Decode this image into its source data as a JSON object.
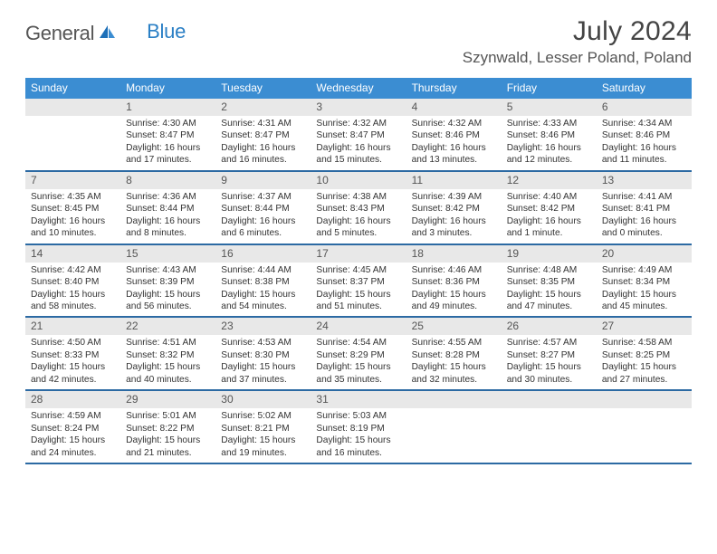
{
  "logo": {
    "text1": "General",
    "text2": "Blue"
  },
  "title": "July 2024",
  "location": "Szynwald, Lesser Poland, Poland",
  "header_bg": "#3b8dd2",
  "header_fg": "#ffffff",
  "row_divider": "#2c6aa3",
  "daynum_bg": "#e8e8e8",
  "dow": [
    "Sunday",
    "Monday",
    "Tuesday",
    "Wednesday",
    "Thursday",
    "Friday",
    "Saturday"
  ],
  "weeks": [
    [
      null,
      {
        "n": "1",
        "sr": "Sunrise: 4:30 AM",
        "ss": "Sunset: 8:47 PM",
        "dl1": "Daylight: 16 hours",
        "dl2": "and 17 minutes."
      },
      {
        "n": "2",
        "sr": "Sunrise: 4:31 AM",
        "ss": "Sunset: 8:47 PM",
        "dl1": "Daylight: 16 hours",
        "dl2": "and 16 minutes."
      },
      {
        "n": "3",
        "sr": "Sunrise: 4:32 AM",
        "ss": "Sunset: 8:47 PM",
        "dl1": "Daylight: 16 hours",
        "dl2": "and 15 minutes."
      },
      {
        "n": "4",
        "sr": "Sunrise: 4:32 AM",
        "ss": "Sunset: 8:46 PM",
        "dl1": "Daylight: 16 hours",
        "dl2": "and 13 minutes."
      },
      {
        "n": "5",
        "sr": "Sunrise: 4:33 AM",
        "ss": "Sunset: 8:46 PM",
        "dl1": "Daylight: 16 hours",
        "dl2": "and 12 minutes."
      },
      {
        "n": "6",
        "sr": "Sunrise: 4:34 AM",
        "ss": "Sunset: 8:46 PM",
        "dl1": "Daylight: 16 hours",
        "dl2": "and 11 minutes."
      }
    ],
    [
      {
        "n": "7",
        "sr": "Sunrise: 4:35 AM",
        "ss": "Sunset: 8:45 PM",
        "dl1": "Daylight: 16 hours",
        "dl2": "and 10 minutes."
      },
      {
        "n": "8",
        "sr": "Sunrise: 4:36 AM",
        "ss": "Sunset: 8:44 PM",
        "dl1": "Daylight: 16 hours",
        "dl2": "and 8 minutes."
      },
      {
        "n": "9",
        "sr": "Sunrise: 4:37 AM",
        "ss": "Sunset: 8:44 PM",
        "dl1": "Daylight: 16 hours",
        "dl2": "and 6 minutes."
      },
      {
        "n": "10",
        "sr": "Sunrise: 4:38 AM",
        "ss": "Sunset: 8:43 PM",
        "dl1": "Daylight: 16 hours",
        "dl2": "and 5 minutes."
      },
      {
        "n": "11",
        "sr": "Sunrise: 4:39 AM",
        "ss": "Sunset: 8:42 PM",
        "dl1": "Daylight: 16 hours",
        "dl2": "and 3 minutes."
      },
      {
        "n": "12",
        "sr": "Sunrise: 4:40 AM",
        "ss": "Sunset: 8:42 PM",
        "dl1": "Daylight: 16 hours",
        "dl2": "and 1 minute."
      },
      {
        "n": "13",
        "sr": "Sunrise: 4:41 AM",
        "ss": "Sunset: 8:41 PM",
        "dl1": "Daylight: 16 hours",
        "dl2": "and 0 minutes."
      }
    ],
    [
      {
        "n": "14",
        "sr": "Sunrise: 4:42 AM",
        "ss": "Sunset: 8:40 PM",
        "dl1": "Daylight: 15 hours",
        "dl2": "and 58 minutes."
      },
      {
        "n": "15",
        "sr": "Sunrise: 4:43 AM",
        "ss": "Sunset: 8:39 PM",
        "dl1": "Daylight: 15 hours",
        "dl2": "and 56 minutes."
      },
      {
        "n": "16",
        "sr": "Sunrise: 4:44 AM",
        "ss": "Sunset: 8:38 PM",
        "dl1": "Daylight: 15 hours",
        "dl2": "and 54 minutes."
      },
      {
        "n": "17",
        "sr": "Sunrise: 4:45 AM",
        "ss": "Sunset: 8:37 PM",
        "dl1": "Daylight: 15 hours",
        "dl2": "and 51 minutes."
      },
      {
        "n": "18",
        "sr": "Sunrise: 4:46 AM",
        "ss": "Sunset: 8:36 PM",
        "dl1": "Daylight: 15 hours",
        "dl2": "and 49 minutes."
      },
      {
        "n": "19",
        "sr": "Sunrise: 4:48 AM",
        "ss": "Sunset: 8:35 PM",
        "dl1": "Daylight: 15 hours",
        "dl2": "and 47 minutes."
      },
      {
        "n": "20",
        "sr": "Sunrise: 4:49 AM",
        "ss": "Sunset: 8:34 PM",
        "dl1": "Daylight: 15 hours",
        "dl2": "and 45 minutes."
      }
    ],
    [
      {
        "n": "21",
        "sr": "Sunrise: 4:50 AM",
        "ss": "Sunset: 8:33 PM",
        "dl1": "Daylight: 15 hours",
        "dl2": "and 42 minutes."
      },
      {
        "n": "22",
        "sr": "Sunrise: 4:51 AM",
        "ss": "Sunset: 8:32 PM",
        "dl1": "Daylight: 15 hours",
        "dl2": "and 40 minutes."
      },
      {
        "n": "23",
        "sr": "Sunrise: 4:53 AM",
        "ss": "Sunset: 8:30 PM",
        "dl1": "Daylight: 15 hours",
        "dl2": "and 37 minutes."
      },
      {
        "n": "24",
        "sr": "Sunrise: 4:54 AM",
        "ss": "Sunset: 8:29 PM",
        "dl1": "Daylight: 15 hours",
        "dl2": "and 35 minutes."
      },
      {
        "n": "25",
        "sr": "Sunrise: 4:55 AM",
        "ss": "Sunset: 8:28 PM",
        "dl1": "Daylight: 15 hours",
        "dl2": "and 32 minutes."
      },
      {
        "n": "26",
        "sr": "Sunrise: 4:57 AM",
        "ss": "Sunset: 8:27 PM",
        "dl1": "Daylight: 15 hours",
        "dl2": "and 30 minutes."
      },
      {
        "n": "27",
        "sr": "Sunrise: 4:58 AM",
        "ss": "Sunset: 8:25 PM",
        "dl1": "Daylight: 15 hours",
        "dl2": "and 27 minutes."
      }
    ],
    [
      {
        "n": "28",
        "sr": "Sunrise: 4:59 AM",
        "ss": "Sunset: 8:24 PM",
        "dl1": "Daylight: 15 hours",
        "dl2": "and 24 minutes."
      },
      {
        "n": "29",
        "sr": "Sunrise: 5:01 AM",
        "ss": "Sunset: 8:22 PM",
        "dl1": "Daylight: 15 hours",
        "dl2": "and 21 minutes."
      },
      {
        "n": "30",
        "sr": "Sunrise: 5:02 AM",
        "ss": "Sunset: 8:21 PM",
        "dl1": "Daylight: 15 hours",
        "dl2": "and 19 minutes."
      },
      {
        "n": "31",
        "sr": "Sunrise: 5:03 AM",
        "ss": "Sunset: 8:19 PM",
        "dl1": "Daylight: 15 hours",
        "dl2": "and 16 minutes."
      },
      null,
      null,
      null
    ]
  ]
}
